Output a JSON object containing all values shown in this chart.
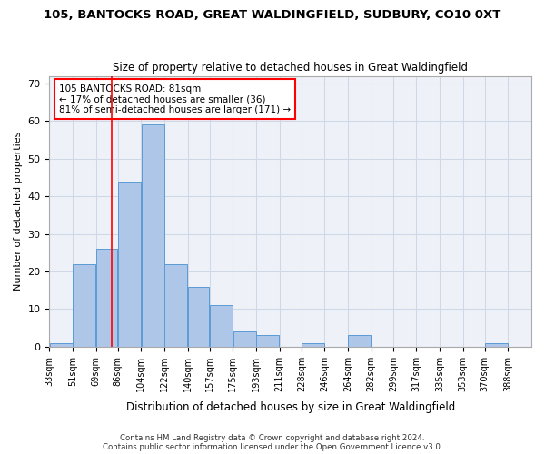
{
  "title": "105, BANTOCKS ROAD, GREAT WALDINGFIELD, SUDBURY, CO10 0XT",
  "subtitle": "Size of property relative to detached houses in Great Waldingfield",
  "xlabel": "Distribution of detached houses by size in Great Waldingfield",
  "ylabel": "Number of detached properties",
  "bar_color": "#aec6e8",
  "bar_edge_color": "#5b9bd5",
  "grid_color": "#d0d8e8",
  "bg_color": "#eef2f8",
  "red_line_x": 81,
  "annotation_title": "105 BANTOCKS ROAD: 81sqm",
  "annotation_line1": "← 17% of detached houses are smaller (36)",
  "annotation_line2": "81% of semi-detached houses are larger (171) →",
  "footer": "Contains HM Land Registry data © Crown copyright and database right 2024.\nContains public sector information licensed under the Open Government Licence v3.0.",
  "bin_labels": [
    "33sqm",
    "51sqm",
    "69sqm",
    "86sqm",
    "104sqm",
    "122sqm",
    "140sqm",
    "157sqm",
    "175sqm",
    "193sqm",
    "211sqm",
    "228sqm",
    "246sqm",
    "264sqm",
    "282sqm",
    "299sqm",
    "317sqm",
    "335sqm",
    "353sqm",
    "370sqm",
    "388sqm"
  ],
  "bin_edges": [
    33,
    51,
    69,
    86,
    104,
    122,
    140,
    157,
    175,
    193,
    211,
    228,
    246,
    264,
    282,
    299,
    317,
    335,
    353,
    370,
    388
  ],
  "bar_heights": [
    1,
    22,
    26,
    44,
    59,
    22,
    16,
    11,
    4,
    3,
    0,
    1,
    0,
    3,
    0,
    0,
    0,
    0,
    0,
    1
  ],
  "ylim": [
    0,
    72
  ],
  "yticks": [
    0,
    10,
    20,
    30,
    40,
    50,
    60,
    70
  ]
}
